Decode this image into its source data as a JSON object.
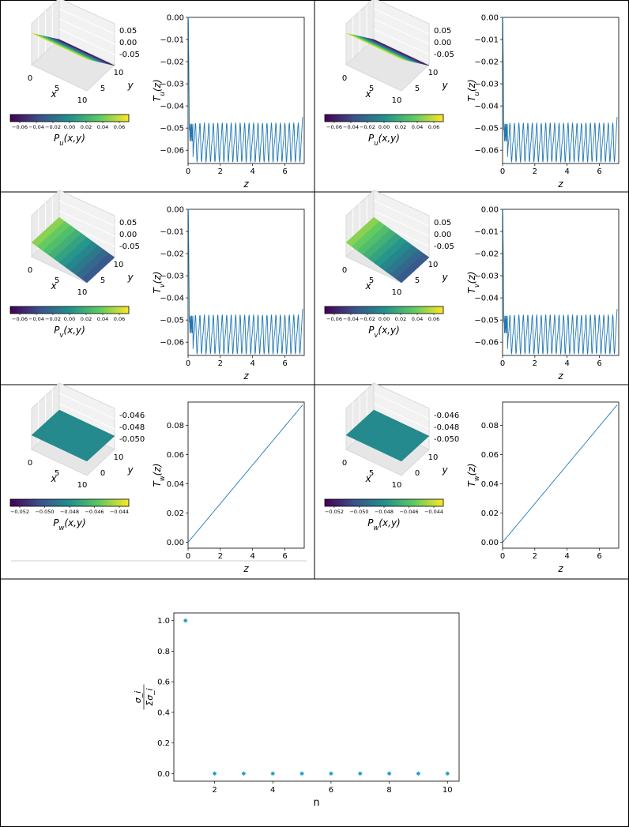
{
  "figure": {
    "panels": [
      {
        "id": "p1",
        "surface": {
          "slope": "y",
          "colorbar_label": "$P_u(x,y)$",
          "z_ticks": [
            "0.05",
            "0.00",
            "-0.05"
          ],
          "x_ticks": [
            "0",
            "5",
            "10"
          ],
          "y_ticks": [
            "5",
            "10"
          ],
          "x_label": "x",
          "y_label": "y",
          "cbar_ticks": [
            "−0.06",
            "−0.04",
            "−0.02",
            "0.00",
            "0.02",
            "0.04",
            "0.06"
          ]
        },
        "time_plot": {
          "ylabel": "T_u(z)",
          "xlabel": "z"
        }
      },
      {
        "id": "p2",
        "surface": {
          "slope": "y",
          "colorbar_label": "$P_u(x,y)$",
          "z_ticks": [
            "0.05",
            "0.00",
            "-0.05"
          ],
          "x_ticks": [
            "0",
            "5",
            "10"
          ],
          "y_ticks": [
            "5",
            "10"
          ],
          "x_label": "x",
          "y_label": "y",
          "cbar_ticks": [
            "−0.06",
            "−0.04",
            "−0.02",
            "0.00",
            "0.02",
            "0.04",
            "0.06"
          ]
        },
        "time_plot": {
          "ylabel": "T_u(z)",
          "xlabel": "z"
        }
      },
      {
        "id": "p3",
        "surface": {
          "slope": "x",
          "colorbar_label": "$P_v(x,y)$",
          "z_ticks": [
            "0.05",
            "0.00",
            "-0.05"
          ],
          "x_ticks": [
            "0",
            "5",
            "10"
          ],
          "y_ticks": [
            "5",
            "10"
          ],
          "x_label": "x",
          "y_label": "y",
          "cbar_ticks": [
            "−0.06",
            "−0.04",
            "−0.02",
            "0.00",
            "0.02",
            "0.04",
            "0.06"
          ]
        },
        "time_plot": {
          "ylabel": "T_v(z)",
          "xlabel": "z"
        }
      },
      {
        "id": "p4",
        "surface": {
          "slope": "x",
          "colorbar_label": "$P_v(x,y)$",
          "z_ticks": [
            "0.05",
            "0.00",
            "-0.05"
          ],
          "x_ticks": [
            "0",
            "5",
            "10"
          ],
          "y_ticks": [
            "5",
            "10"
          ],
          "x_label": "x",
          "y_label": "y",
          "cbar_ticks": [
            "−0.06",
            "−0.04",
            "−0.02",
            "0.00",
            "0.02",
            "0.04",
            "0.06"
          ]
        },
        "time_plot": {
          "ylabel": "T_v(z)",
          "xlabel": "z"
        }
      },
      {
        "id": "p5",
        "surface": {
          "slope": "flat",
          "colorbar_label": "$P_w(x,y)$",
          "z_ticks": [
            "-0.046",
            "-0.048",
            "-0.050"
          ],
          "x_ticks": [
            "0",
            "5",
            "10"
          ],
          "y_ticks": [
            "0",
            "10"
          ],
          "x_label": "x",
          "y_label": "y",
          "cbar_ticks": [
            "−0.052",
            "−0.050",
            "−0.048",
            "−0.046",
            "−0.044"
          ]
        },
        "time_plot": {
          "ylabel": "T_w(z)",
          "xlabel": "z"
        }
      },
      {
        "id": "p6",
        "surface": {
          "slope": "flat",
          "colorbar_label": "$P_w(x,y)$",
          "z_ticks": [
            "-0.046",
            "-0.048",
            "-0.050"
          ],
          "x_ticks": [
            "0",
            "5",
            "10"
          ],
          "y_ticks": [
            "0",
            "10"
          ],
          "x_label": "x",
          "y_label": "y",
          "cbar_ticks": [
            "−0.052",
            "−0.050",
            "−0.048",
            "−0.046",
            "−0.044"
          ]
        },
        "time_plot": {
          "ylabel": "T_w(z)",
          "xlabel": "z"
        }
      }
    ],
    "colormap": [
      "#440154",
      "#3b528b",
      "#21908d",
      "#5dc963",
      "#fde725"
    ],
    "line_color": "#1f77b4",
    "marker_color": "#1f9fbf"
  },
  "chart_data": [
    {
      "type": "line",
      "panel": "p1",
      "ylabel": "T_u(z)",
      "xlabel": "z",
      "xlim": [
        0,
        7.2
      ],
      "ylim": [
        -0.066,
        0.0
      ],
      "x_ticks": [
        0,
        2,
        4,
        6
      ],
      "y_ticks": [
        0.0,
        -0.01,
        -0.02,
        -0.03,
        -0.04,
        -0.05,
        -0.06
      ],
      "x_tick_labels": [
        "0",
        "2",
        "4",
        "6"
      ],
      "y_tick_labels": [
        "0.00",
        "−0.01",
        "−0.02",
        "−0.03",
        "−0.04",
        "−0.05",
        "−0.06"
      ],
      "signal": {
        "start": 0.0,
        "drop_to": -0.052,
        "oscillation_low": -0.064,
        "oscillation_high": -0.049,
        "cycles": 24,
        "end_value": -0.045
      }
    },
    {
      "type": "line",
      "panel": "p2",
      "ylabel": "T_u(z)",
      "xlabel": "z",
      "xlim": [
        0,
        7.2
      ],
      "ylim": [
        -0.066,
        0.0
      ],
      "x_ticks": [
        0,
        2,
        4,
        6
      ],
      "y_ticks": [
        0.0,
        -0.01,
        -0.02,
        -0.03,
        -0.04,
        -0.05,
        -0.06
      ],
      "x_tick_labels": [
        "0",
        "2",
        "4",
        "6"
      ],
      "y_tick_labels": [
        "0.00",
        "−0.01",
        "−0.02",
        "−0.03",
        "−0.04",
        "−0.05",
        "−0.06"
      ],
      "signal": {
        "start": 0.0,
        "drop_to": -0.052,
        "oscillation_low": -0.064,
        "oscillation_high": -0.049,
        "cycles": 24,
        "end_value": -0.045
      }
    },
    {
      "type": "line",
      "panel": "p3",
      "ylabel": "T_v(z)",
      "xlabel": "z",
      "xlim": [
        0,
        7.2
      ],
      "ylim": [
        -0.066,
        0.0
      ],
      "x_ticks": [
        0,
        2,
        4,
        6
      ],
      "y_ticks": [
        0.0,
        -0.01,
        -0.02,
        -0.03,
        -0.04,
        -0.05,
        -0.06
      ],
      "x_tick_labels": [
        "0",
        "2",
        "4",
        "6"
      ],
      "y_tick_labels": [
        "0.00",
        "−0.01",
        "−0.02",
        "−0.03",
        "−0.04",
        "−0.05",
        "−0.06"
      ],
      "signal": {
        "start": 0.0,
        "drop_to": -0.052,
        "oscillation_low": -0.064,
        "oscillation_high": -0.049,
        "cycles": 24,
        "end_value": -0.045
      }
    },
    {
      "type": "line",
      "panel": "p4",
      "ylabel": "T_v(z)",
      "xlabel": "z",
      "xlim": [
        0,
        7.2
      ],
      "ylim": [
        -0.066,
        0.0
      ],
      "x_ticks": [
        0,
        2,
        4,
        6
      ],
      "y_ticks": [
        0.0,
        -0.01,
        -0.02,
        -0.03,
        -0.04,
        -0.05,
        -0.06
      ],
      "x_tick_labels": [
        "0",
        "2",
        "4",
        "6"
      ],
      "y_tick_labels": [
        "0.00",
        "−0.01",
        "−0.02",
        "−0.03",
        "−0.04",
        "−0.05",
        "−0.06"
      ],
      "signal": {
        "start": 0.0,
        "drop_to": -0.052,
        "oscillation_low": -0.064,
        "oscillation_high": -0.049,
        "cycles": 24,
        "end_value": -0.045
      }
    },
    {
      "type": "line",
      "panel": "p5",
      "ylabel": "T_w(z)",
      "xlabel": "z",
      "xlim": [
        0,
        7.2
      ],
      "ylim": [
        -0.004,
        0.096
      ],
      "x_ticks": [
        0,
        2,
        4,
        6
      ],
      "y_ticks": [
        0.0,
        0.02,
        0.04,
        0.06,
        0.08
      ],
      "x_tick_labels": [
        "0",
        "2",
        "4",
        "6"
      ],
      "y_tick_labels": [
        "0.00",
        "0.02",
        "0.04",
        "0.06",
        "0.08"
      ],
      "x": [
        0,
        7.1
      ],
      "y": [
        0.0,
        0.094
      ]
    },
    {
      "type": "line",
      "panel": "p6",
      "ylabel": "T_w(z)",
      "xlabel": "z",
      "xlim": [
        0,
        7.2
      ],
      "ylim": [
        -0.004,
        0.096
      ],
      "x_ticks": [
        0,
        2,
        4,
        6
      ],
      "y_ticks": [
        0.0,
        0.02,
        0.04,
        0.06,
        0.08
      ],
      "x_tick_labels": [
        "0",
        "2",
        "4",
        "6"
      ],
      "y_tick_labels": [
        "0.00",
        "0.02",
        "0.04",
        "0.06",
        "0.08"
      ],
      "x": [
        0,
        7.1
      ],
      "y": [
        0.0,
        0.094
      ]
    },
    {
      "type": "scatter",
      "panel": "bottom",
      "xlabel": "n",
      "ylabel": "σ_i / Σσ_i",
      "xlim": [
        0.6,
        10.4
      ],
      "ylim": [
        -0.05,
        1.05
      ],
      "x_ticks": [
        2,
        4,
        6,
        8,
        10
      ],
      "y_ticks": [
        0.0,
        0.2,
        0.4,
        0.6,
        0.8,
        1.0
      ],
      "x_tick_labels": [
        "2",
        "4",
        "6",
        "8",
        "10"
      ],
      "y_tick_labels": [
        "0.0",
        "0.2",
        "0.4",
        "0.6",
        "0.8",
        "1.0"
      ],
      "x": [
        1,
        2,
        3,
        4,
        5,
        6,
        7,
        8,
        9,
        10
      ],
      "y": [
        1.0,
        0.0,
        0.0,
        0.0,
        0.0,
        0.0,
        0.0,
        0.0,
        0.0,
        0.0
      ]
    }
  ]
}
